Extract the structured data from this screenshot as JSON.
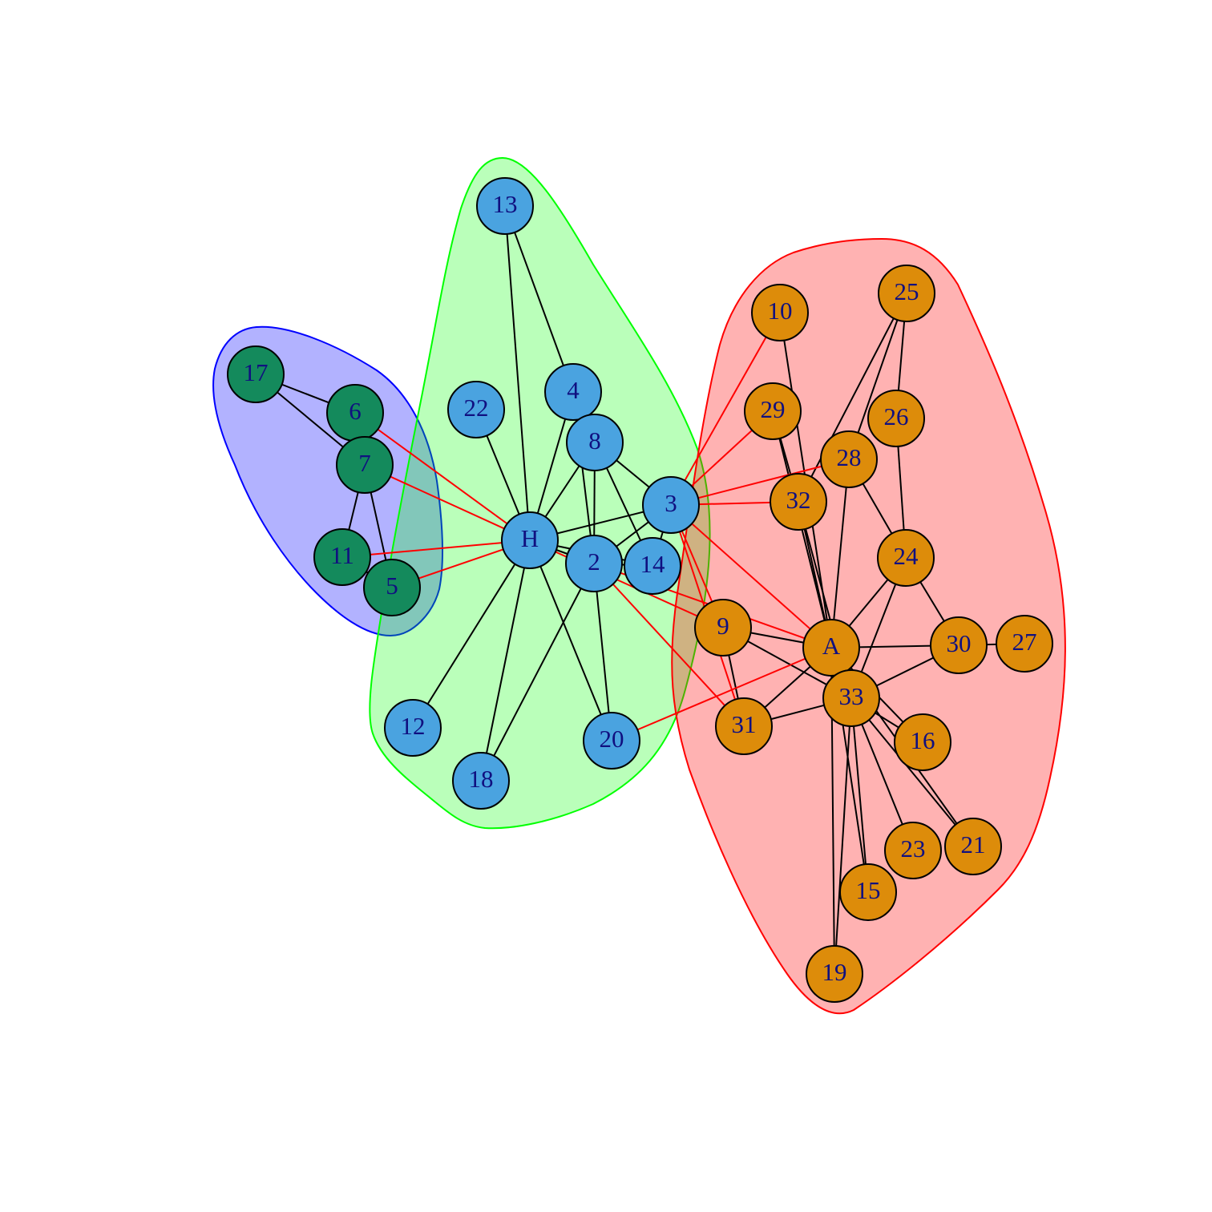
{
  "colors": {
    "node_fill": {
      "blue": "#4aa3e0",
      "green": "#148a5c",
      "orange": "#dd8c0a"
    },
    "label": "#101080",
    "intra_edge": "#000000",
    "inter_edge": "#ff0000",
    "hull": [
      {
        "group": "blue",
        "fill": "rgba(0,0,255,0.3)",
        "stroke": "#0000ff"
      },
      {
        "group": "green",
        "fill": "rgba(0,255,0,0.27)",
        "stroke": "#00ff00"
      },
      {
        "group": "red",
        "fill": "rgba(255,0,0,0.3)",
        "stroke": "#ff0000"
      }
    ]
  },
  "nodes": [
    {
      "id": "13",
      "label": "13",
      "group": "blue"
    },
    {
      "id": "4",
      "label": "4",
      "group": "blue"
    },
    {
      "id": "22",
      "label": "22",
      "group": "blue"
    },
    {
      "id": "8",
      "label": "8",
      "group": "blue"
    },
    {
      "id": "3",
      "label": "3",
      "group": "blue"
    },
    {
      "id": "H",
      "label": "H",
      "group": "blue"
    },
    {
      "id": "2",
      "label": "2",
      "group": "blue"
    },
    {
      "id": "14",
      "label": "14",
      "group": "blue"
    },
    {
      "id": "12",
      "label": "12",
      "group": "blue"
    },
    {
      "id": "18",
      "label": "18",
      "group": "blue"
    },
    {
      "id": "20",
      "label": "20",
      "group": "blue"
    },
    {
      "id": "17",
      "label": "17",
      "group": "green"
    },
    {
      "id": "6",
      "label": "6",
      "group": "green"
    },
    {
      "id": "7",
      "label": "7",
      "group": "green"
    },
    {
      "id": "11",
      "label": "11",
      "group": "green"
    },
    {
      "id": "5",
      "label": "5",
      "group": "green"
    },
    {
      "id": "10",
      "label": "10",
      "group": "orange"
    },
    {
      "id": "25",
      "label": "25",
      "group": "orange"
    },
    {
      "id": "29",
      "label": "29",
      "group": "orange"
    },
    {
      "id": "26",
      "label": "26",
      "group": "orange"
    },
    {
      "id": "28",
      "label": "28",
      "group": "orange"
    },
    {
      "id": "32",
      "label": "32",
      "group": "orange"
    },
    {
      "id": "24",
      "label": "24",
      "group": "orange"
    },
    {
      "id": "9",
      "label": "9",
      "group": "orange"
    },
    {
      "id": "A",
      "label": "A",
      "group": "orange"
    },
    {
      "id": "30",
      "label": "30",
      "group": "orange"
    },
    {
      "id": "27",
      "label": "27",
      "group": "orange"
    },
    {
      "id": "33",
      "label": "33",
      "group": "orange"
    },
    {
      "id": "31",
      "label": "31",
      "group": "orange"
    },
    {
      "id": "16",
      "label": "16",
      "group": "orange"
    },
    {
      "id": "23",
      "label": "23",
      "group": "orange"
    },
    {
      "id": "21",
      "label": "21",
      "group": "orange"
    },
    {
      "id": "15",
      "label": "15",
      "group": "orange"
    },
    {
      "id": "19",
      "label": "19",
      "group": "orange"
    }
  ],
  "edges": [
    [
      "17",
      "6"
    ],
    [
      "17",
      "7"
    ],
    [
      "6",
      "7"
    ],
    [
      "7",
      "11"
    ],
    [
      "7",
      "5"
    ],
    [
      "11",
      "5"
    ],
    [
      "13",
      "4"
    ],
    [
      "13",
      "H"
    ],
    [
      "4",
      "H"
    ],
    [
      "22",
      "H"
    ],
    [
      "8",
      "H"
    ],
    [
      "8",
      "2"
    ],
    [
      "8",
      "3"
    ],
    [
      "8",
      "14"
    ],
    [
      "H",
      "3"
    ],
    [
      "H",
      "2"
    ],
    [
      "H",
      "14"
    ],
    [
      "H",
      "12"
    ],
    [
      "H",
      "18"
    ],
    [
      "H",
      "20"
    ],
    [
      "2",
      "3"
    ],
    [
      "2",
      "14"
    ],
    [
      "2",
      "18"
    ],
    [
      "2",
      "20"
    ],
    [
      "3",
      "14"
    ],
    [
      "4",
      "8"
    ],
    [
      "4",
      "2"
    ],
    [
      "10",
      "A"
    ],
    [
      "29",
      "A"
    ],
    [
      "29",
      "32"
    ],
    [
      "25",
      "28"
    ],
    [
      "25",
      "26"
    ],
    [
      "25",
      "32"
    ],
    [
      "26",
      "24"
    ],
    [
      "28",
      "24"
    ],
    [
      "28",
      "A"
    ],
    [
      "32",
      "A"
    ],
    [
      "32",
      "33"
    ],
    [
      "24",
      "A"
    ],
    [
      "24",
      "30"
    ],
    [
      "24",
      "33"
    ],
    [
      "9",
      "A"
    ],
    [
      "9",
      "31"
    ],
    [
      "9",
      "33"
    ],
    [
      "A",
      "30"
    ],
    [
      "A",
      "31"
    ],
    [
      "A",
      "33"
    ],
    [
      "30",
      "27"
    ],
    [
      "30",
      "33"
    ],
    [
      "31",
      "33"
    ],
    [
      "33",
      "16"
    ],
    [
      "33",
      "23"
    ],
    [
      "33",
      "21"
    ],
    [
      "33",
      "15"
    ],
    [
      "33",
      "19"
    ],
    [
      "A",
      "16"
    ],
    [
      "A",
      "21"
    ],
    [
      "A",
      "15"
    ],
    [
      "A",
      "19"
    ],
    [
      "6",
      "H"
    ],
    [
      "7",
      "H"
    ],
    [
      "11",
      "H"
    ],
    [
      "5",
      "H"
    ],
    [
      "3",
      "10"
    ],
    [
      "3",
      "29"
    ],
    [
      "3",
      "28"
    ],
    [
      "3",
      "32"
    ],
    [
      "3",
      "9"
    ],
    [
      "3",
      "A"
    ],
    [
      "3",
      "31"
    ],
    [
      "H",
      "9"
    ],
    [
      "2",
      "A"
    ],
    [
      "2",
      "31"
    ],
    [
      "20",
      "A"
    ]
  ]
}
